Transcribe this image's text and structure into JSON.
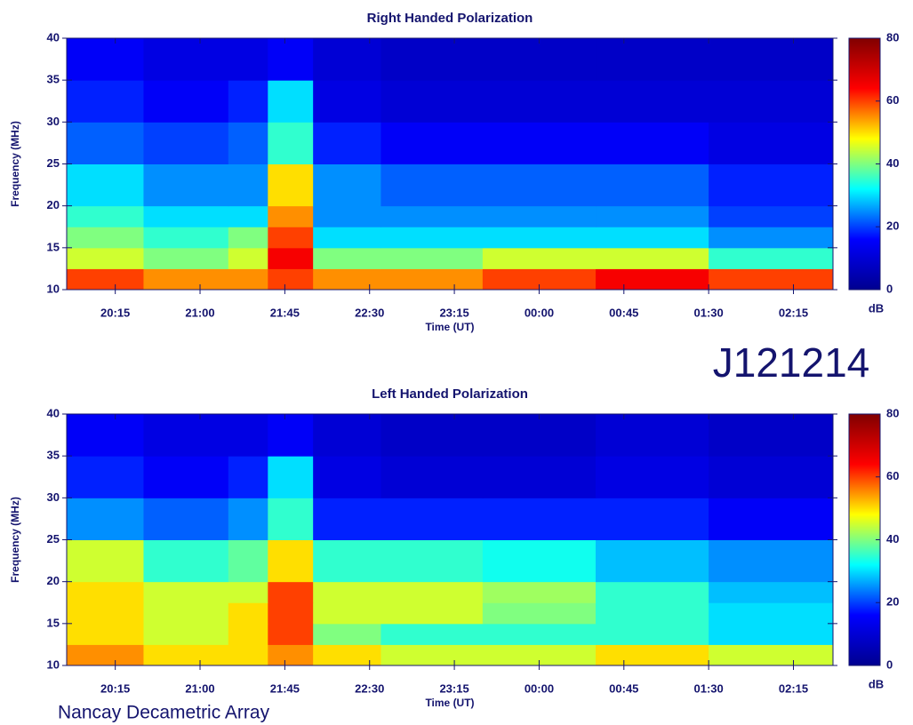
{
  "chart_data": [
    {
      "type": "heatmap",
      "title": "Right Handed Polarization",
      "x_label": "Time (UT)",
      "y_label": "Frequency (MHz)",
      "xlim": [
        19.82,
        26.6
      ],
      "ylim": [
        10,
        40
      ],
      "xticks": [
        {
          "value": 20.25,
          "label": "20:15"
        },
        {
          "value": 21,
          "label": "21:00"
        },
        {
          "value": 21.75,
          "label": "21:45"
        },
        {
          "value": 22.5,
          "label": "22:30"
        },
        {
          "value": 23.25,
          "label": "23:15"
        },
        {
          "value": 24,
          "label": "00:00"
        },
        {
          "value": 24.75,
          "label": "00:45"
        },
        {
          "value": 25.5,
          "label": "01:30"
        },
        {
          "value": 26.25,
          "label": "02:15"
        }
      ],
      "yticks": [
        10,
        15,
        20,
        25,
        30,
        35,
        40
      ],
      "xbins": [
        19.82,
        20.5,
        21.25,
        21.6,
        22.0,
        22.6,
        23.5,
        24.5,
        25.5,
        26.6
      ],
      "ybins": [
        10,
        12.5,
        15,
        17.5,
        20,
        25,
        30,
        35,
        40
      ],
      "z": [
        [
          60,
          55,
          55,
          60,
          55,
          55,
          60,
          65,
          60
        ],
        [
          45,
          40,
          45,
          65,
          40,
          40,
          45,
          45,
          35
        ],
        [
          40,
          35,
          40,
          60,
          30,
          30,
          30,
          30,
          25
        ],
        [
          35,
          30,
          30,
          55,
          25,
          25,
          25,
          25,
          20
        ],
        [
          30,
          25,
          25,
          50,
          25,
          22,
          22,
          22,
          18
        ],
        [
          22,
          20,
          22,
          35,
          18,
          15,
          15,
          15,
          12
        ],
        [
          18,
          15,
          18,
          30,
          12,
          10,
          10,
          10,
          10
        ],
        [
          15,
          12,
          12,
          15,
          10,
          8,
          8,
          8,
          8
        ]
      ],
      "zlim": [
        0,
        80
      ],
      "zticks": [
        0,
        20,
        40,
        60,
        80
      ],
      "colorbar_label": "dB",
      "colorscale": [
        "#00008f",
        "#0000ff",
        "#00ffff",
        "#ffff00",
        "#ff0000",
        "#800000"
      ]
    },
    {
      "type": "heatmap",
      "title": "Left Handed Polarization",
      "x_label": "Time (UT)",
      "y_label": "Frequency (MHz)",
      "xlim": [
        19.82,
        26.6
      ],
      "ylim": [
        10,
        40
      ],
      "xticks": [
        {
          "value": 20.25,
          "label": "20:15"
        },
        {
          "value": 21,
          "label": "21:00"
        },
        {
          "value": 21.75,
          "label": "21:45"
        },
        {
          "value": 22.5,
          "label": "22:30"
        },
        {
          "value": 23.25,
          "label": "23:15"
        },
        {
          "value": 24,
          "label": "00:00"
        },
        {
          "value": 24.75,
          "label": "00:45"
        },
        {
          "value": 25.5,
          "label": "01:30"
        },
        {
          "value": 26.25,
          "label": "02:15"
        }
      ],
      "yticks": [
        10,
        15,
        20,
        25,
        30,
        35,
        40
      ],
      "xbins": [
        19.82,
        20.5,
        21.25,
        21.6,
        22.0,
        22.6,
        23.5,
        24.5,
        25.5,
        26.6
      ],
      "ybins": [
        10,
        12.5,
        15,
        17.5,
        20,
        25,
        30,
        35,
        40
      ],
      "z": [
        [
          55,
          50,
          50,
          55,
          50,
          45,
          45,
          50,
          45
        ],
        [
          50,
          45,
          50,
          60,
          40,
          35,
          35,
          35,
          30
        ],
        [
          50,
          45,
          50,
          60,
          45,
          45,
          40,
          35,
          30
        ],
        [
          50,
          45,
          45,
          60,
          45,
          45,
          42,
          35,
          28
        ],
        [
          45,
          35,
          38,
          50,
          35,
          35,
          33,
          28,
          25
        ],
        [
          25,
          22,
          25,
          35,
          18,
          18,
          18,
          18,
          15
        ],
        [
          18,
          15,
          18,
          30,
          12,
          10,
          10,
          12,
          10
        ],
        [
          15,
          12,
          12,
          15,
          10,
          8,
          8,
          10,
          8
        ]
      ],
      "zlim": [
        0,
        80
      ],
      "zticks": [
        0,
        20,
        40,
        60,
        80
      ],
      "colorbar_label": "dB",
      "colorscale": [
        "#00008f",
        "#0000ff",
        "#00ffff",
        "#ffff00",
        "#ff0000",
        "#800000"
      ]
    }
  ],
  "label": "J121214",
  "footer": "Nancay Decametric Array"
}
